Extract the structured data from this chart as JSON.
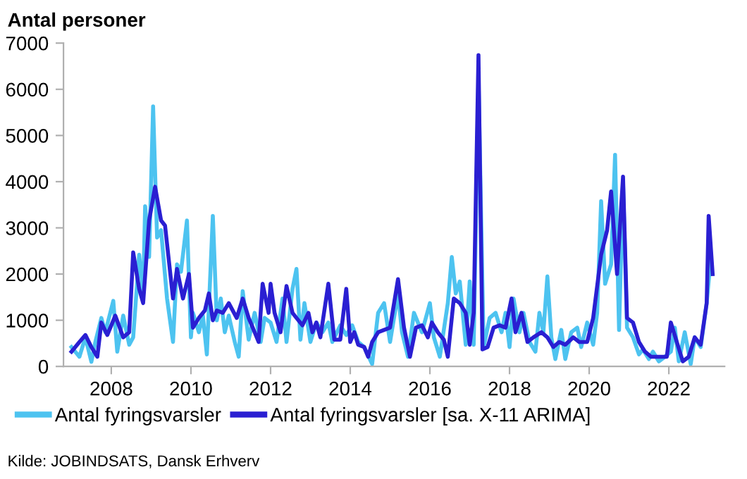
{
  "chart_data": {
    "type": "line",
    "title": "Antal personer",
    "xlim": [
      2006.8,
      2023.4
    ],
    "xticks": [
      2008,
      2010,
      2012,
      2014,
      2016,
      2018,
      2020,
      2022
    ],
    "ylim": [
      0,
      7000
    ],
    "yticks": [
      0,
      1000,
      2000,
      3000,
      4000,
      5000,
      6000,
      7000
    ],
    "grid": false,
    "legend": "bottom",
    "line_style": "solid",
    "annotations": [
      "Kilde: JOBINDSATS, Dansk Erhverv"
    ],
    "series": [
      {
        "name": "Antal fyringsvarsler",
        "color": "#4dc3f0",
        "x": [
          2007.0,
          2007.2,
          2007.35,
          2007.5,
          2007.6,
          2007.75,
          2007.85,
          2008.05,
          2008.15,
          2008.3,
          2008.45,
          2008.55,
          2008.7,
          2008.8,
          2008.85,
          2008.95,
          2009.05,
          2009.15,
          2009.25,
          2009.4,
          2009.55,
          2009.65,
          2009.75,
          2009.9,
          2010.0,
          2010.05,
          2010.2,
          2010.3,
          2010.4,
          2010.55,
          2010.65,
          2010.75,
          2010.85,
          2010.95,
          2011.1,
          2011.2,
          2011.3,
          2011.45,
          2011.6,
          2011.75,
          2011.85,
          2012.0,
          2012.15,
          2012.3,
          2012.4,
          2012.55,
          2012.65,
          2012.75,
          2012.85,
          2013.0,
          2013.15,
          2013.3,
          2013.45,
          2013.55,
          2013.75,
          2013.9,
          2014.05,
          2014.2,
          2014.35,
          2014.55,
          2014.7,
          2014.85,
          2015.0,
          2015.2,
          2015.3,
          2015.45,
          2015.6,
          2015.8,
          2016.0,
          2016.1,
          2016.25,
          2016.45,
          2016.55,
          2016.65,
          2016.75,
          2016.9,
          2017.0,
          2017.1,
          2017.22,
          2017.35,
          2017.5,
          2017.65,
          2017.8,
          2017.9,
          2018.0,
          2018.1,
          2018.25,
          2018.35,
          2018.5,
          2018.65,
          2018.75,
          2018.85,
          2018.95,
          2019.05,
          2019.15,
          2019.3,
          2019.4,
          2019.55,
          2019.7,
          2019.8,
          2019.95,
          2020.1,
          2020.2,
          2020.3,
          2020.4,
          2020.55,
          2020.65,
          2020.75,
          2020.85,
          2020.95,
          2021.1,
          2021.25,
          2021.35,
          2021.5,
          2021.6,
          2021.75,
          2021.9,
          2022.05,
          2022.15,
          2022.25,
          2022.4,
          2022.55,
          2022.65,
          2022.8,
          2022.95,
          2023.05
        ],
        "values": [
          420,
          210,
          630,
          100,
          530,
          1050,
          740,
          1420,
          320,
          1100,
          470,
          630,
          2420,
          1580,
          3470,
          2370,
          5630,
          2790,
          2950,
          1470,
          530,
          2210,
          2050,
          3160,
          630,
          1160,
          740,
          1100,
          260,
          3260,
          1000,
          1470,
          740,
          1100,
          530,
          210,
          1630,
          580,
          1160,
          530,
          1050,
          950,
          530,
          1470,
          530,
          1680,
          2110,
          580,
          1370,
          530,
          950,
          740,
          950,
          530,
          890,
          680,
          890,
          530,
          420,
          50,
          1160,
          1370,
          530,
          1580,
          740,
          210,
          1160,
          740,
          1370,
          630,
          210,
          1370,
          2370,
          1580,
          1840,
          470,
          1840,
          470,
          6210,
          420,
          1050,
          1160,
          740,
          1160,
          420,
          1470,
          740,
          1160,
          530,
          320,
          1160,
          740,
          1950,
          630,
          160,
          790,
          160,
          740,
          840,
          420,
          950,
          470,
          1160,
          3580,
          1790,
          2210,
          4580,
          790,
          4000,
          840,
          630,
          260,
          370,
          160,
          320,
          110,
          210,
          320,
          840,
          110,
          740,
          50,
          630,
          420,
          1370,
          2320
        ]
      },
      {
        "name": "Antal fyringsvarsler [sa. X-11 ARIMA]",
        "color": "#2a1fd2",
        "x": [
          2007.0,
          2007.2,
          2007.35,
          2007.5,
          2007.65,
          2007.75,
          2007.9,
          2008.1,
          2008.3,
          2008.45,
          2008.55,
          2008.7,
          2008.8,
          2008.95,
          2009.1,
          2009.25,
          2009.35,
          2009.55,
          2009.65,
          2009.8,
          2009.95,
          2010.05,
          2010.2,
          2010.35,
          2010.45,
          2010.55,
          2010.65,
          2010.8,
          2010.95,
          2011.15,
          2011.3,
          2011.45,
          2011.6,
          2011.7,
          2011.8,
          2011.95,
          2012.0,
          2012.1,
          2012.25,
          2012.4,
          2012.55,
          2012.65,
          2012.8,
          2012.95,
          2013.05,
          2013.15,
          2013.25,
          2013.45,
          2013.6,
          2013.75,
          2013.9,
          2014.0,
          2014.1,
          2014.2,
          2014.35,
          2014.45,
          2014.55,
          2014.7,
          2014.85,
          2015.0,
          2015.2,
          2015.35,
          2015.5,
          2015.65,
          2015.8,
          2015.95,
          2016.05,
          2016.2,
          2016.35,
          2016.45,
          2016.6,
          2016.75,
          2016.9,
          2017.0,
          2017.1,
          2017.22,
          2017.32,
          2017.45,
          2017.6,
          2017.75,
          2017.9,
          2018.05,
          2018.15,
          2018.3,
          2018.45,
          2018.6,
          2018.8,
          2018.95,
          2019.1,
          2019.25,
          2019.4,
          2019.6,
          2019.75,
          2019.95,
          2020.1,
          2020.3,
          2020.45,
          2020.55,
          2020.7,
          2020.85,
          2020.95,
          2021.1,
          2021.25,
          2021.4,
          2021.55,
          2021.75,
          2021.95,
          2022.05,
          2022.2,
          2022.35,
          2022.5,
          2022.65,
          2022.8,
          2022.95,
          2023.0,
          2023.1
        ],
        "values": [
          320,
          530,
          680,
          420,
          210,
          950,
          680,
          1100,
          630,
          740,
          2470,
          1680,
          1370,
          3160,
          3890,
          3160,
          3050,
          1470,
          2110,
          1470,
          2000,
          840,
          1050,
          1210,
          1580,
          1000,
          1210,
          1160,
          1370,
          1050,
          1470,
          1050,
          740,
          530,
          1790,
          1160,
          1790,
          1160,
          740,
          1740,
          1160,
          1050,
          890,
          1160,
          740,
          950,
          630,
          1790,
          580,
          580,
          1680,
          530,
          740,
          470,
          420,
          210,
          530,
          740,
          790,
          840,
          1890,
          840,
          210,
          840,
          890,
          630,
          950,
          740,
          580,
          210,
          1470,
          1370,
          1160,
          470,
          1160,
          6740,
          370,
          420,
          840,
          890,
          840,
          1470,
          740,
          1160,
          530,
          630,
          740,
          630,
          420,
          530,
          470,
          630,
          530,
          530,
          1050,
          2420,
          2950,
          3790,
          2000,
          4110,
          1050,
          950,
          530,
          320,
          210,
          210,
          210,
          950,
          530,
          110,
          210,
          630,
          470,
          1370,
          3260,
          2000
        ]
      }
    ]
  }
}
